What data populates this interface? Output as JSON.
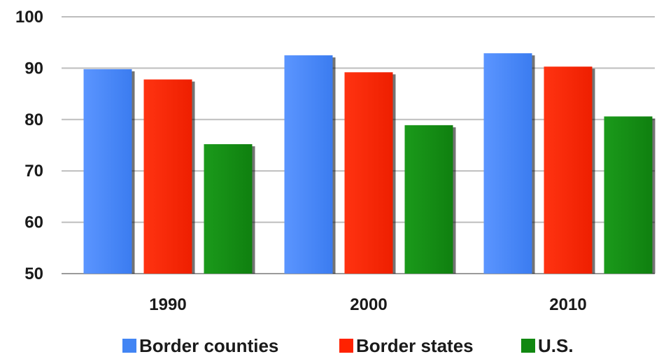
{
  "chart_data": {
    "type": "bar",
    "categories": [
      "1990",
      "2000",
      "2010"
    ],
    "series": [
      {
        "name": "Border counties",
        "values": [
          89.8,
          92.5,
          92.9
        ],
        "color": "#4285f4"
      },
      {
        "name": "Border states",
        "values": [
          87.8,
          89.2,
          90.3
        ],
        "color": "#ff2200"
      },
      {
        "name": "U.S.",
        "values": [
          75.2,
          78.9,
          80.6
        ],
        "color": "#118811"
      }
    ],
    "yticks": [
      "50",
      "60",
      "70",
      "80",
      "90",
      "100"
    ],
    "ylim": [
      50,
      100
    ],
    "grid": true,
    "legend": "bottom",
    "title": "",
    "xlabel": "",
    "ylabel": ""
  }
}
